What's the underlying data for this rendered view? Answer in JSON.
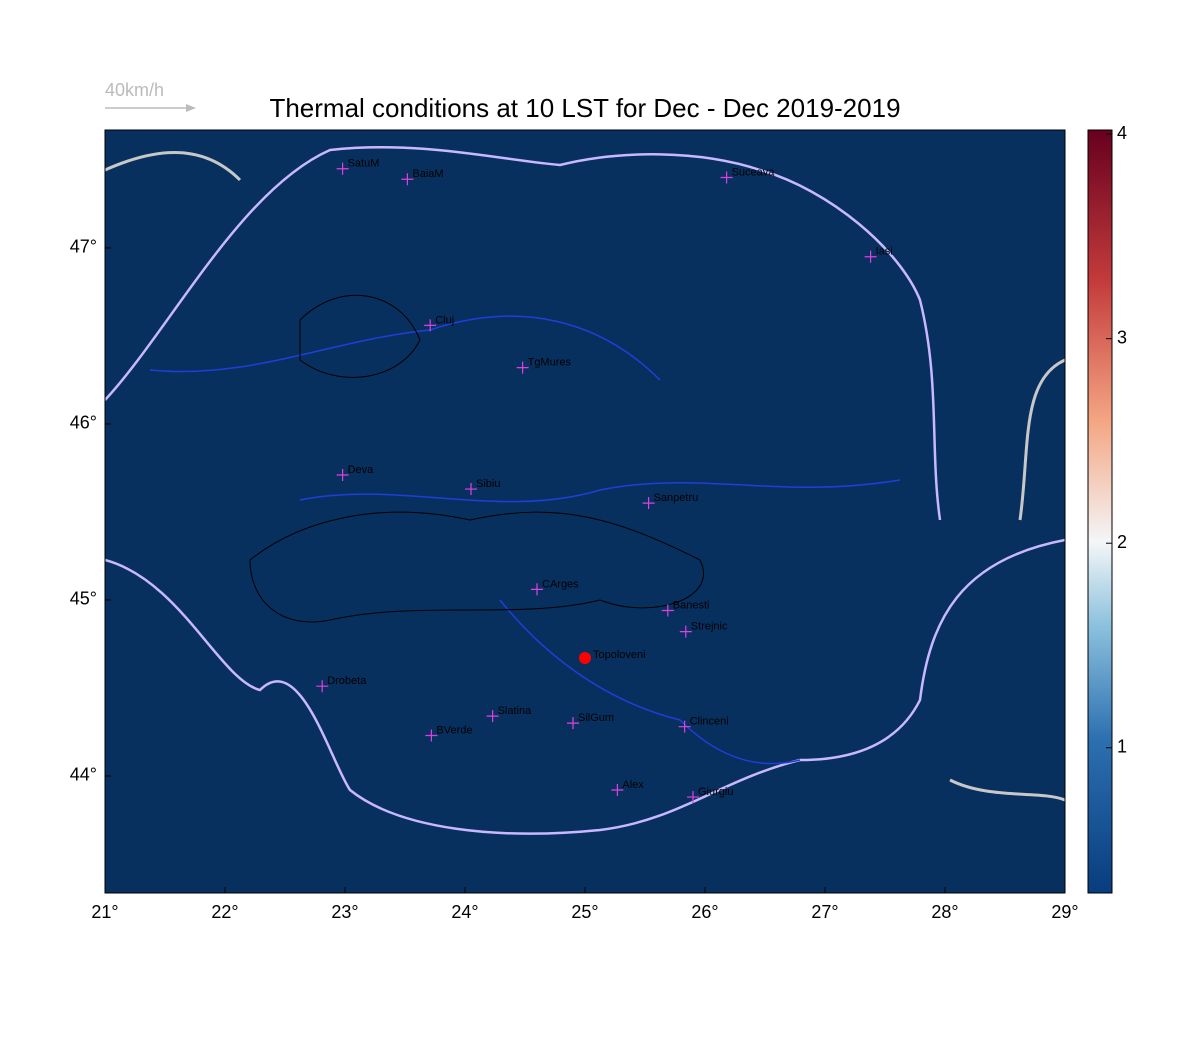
{
  "map": {
    "title": "Thermal conditions at 10 LST for Dec - Dec  2019-2019",
    "wind_legend": "40km/h",
    "xlim": [
      21,
      29
    ],
    "ylim": [
      43.335,
      47.67
    ],
    "xticks": [
      {
        "value": 21,
        "label": "21°"
      },
      {
        "value": 22,
        "label": "22°"
      },
      {
        "value": 23,
        "label": "23°"
      },
      {
        "value": 24,
        "label": "24°"
      },
      {
        "value": 25,
        "label": "25°"
      },
      {
        "value": 26,
        "label": "26°"
      },
      {
        "value": 27,
        "label": "27°"
      },
      {
        "value": 28,
        "label": "28°"
      },
      {
        "value": 29,
        "label": "29°"
      }
    ],
    "yticks": [
      {
        "value": 44,
        "label": "44°"
      },
      {
        "value": 45,
        "label": "45°"
      },
      {
        "value": 46,
        "label": "46°"
      },
      {
        "value": 47,
        "label": "47°"
      }
    ],
    "colorbar": {
      "lim": [
        0.29,
        4.02
      ],
      "ticks": [
        1,
        2,
        3,
        4
      ]
    },
    "cities": [
      {
        "name": "SatuM",
        "lon": 22.98,
        "lat": 47.45
      },
      {
        "name": "BaiaM",
        "lon": 23.52,
        "lat": 47.39
      },
      {
        "name": "Suceava",
        "lon": 26.18,
        "lat": 47.4
      },
      {
        "name": "Iasi",
        "lon": 27.38,
        "lat": 46.95
      },
      {
        "name": "Cluj",
        "lon": 23.71,
        "lat": 46.56
      },
      {
        "name": "TgMures",
        "lon": 24.48,
        "lat": 46.32
      },
      {
        "name": "Deva",
        "lon": 22.98,
        "lat": 45.71
      },
      {
        "name": "Sibiu",
        "lon": 24.05,
        "lat": 45.63
      },
      {
        "name": "Sanpetru",
        "lon": 25.53,
        "lat": 45.55
      },
      {
        "name": "CArges",
        "lon": 24.6,
        "lat": 45.06
      },
      {
        "name": "Banesti",
        "lon": 25.69,
        "lat": 44.94
      },
      {
        "name": "Strejnic",
        "lon": 25.84,
        "lat": 44.82
      },
      {
        "name": "Drobeta",
        "lon": 22.81,
        "lat": 44.51
      },
      {
        "name": "Slatina",
        "lon": 24.23,
        "lat": 44.34
      },
      {
        "name": "SilGum",
        "lon": 24.9,
        "lat": 44.3
      },
      {
        "name": "BVerde",
        "lon": 23.72,
        "lat": 44.23
      },
      {
        "name": "Clinceni",
        "lon": 25.83,
        "lat": 44.28
      },
      {
        "name": "Alex",
        "lon": 25.27,
        "lat": 43.92
      },
      {
        "name": "Giurgiu",
        "lon": 25.9,
        "lat": 43.88
      }
    ],
    "site": {
      "name": "Topoloveni",
      "lon": 25.0,
      "lat": 44.67
    }
  }
}
